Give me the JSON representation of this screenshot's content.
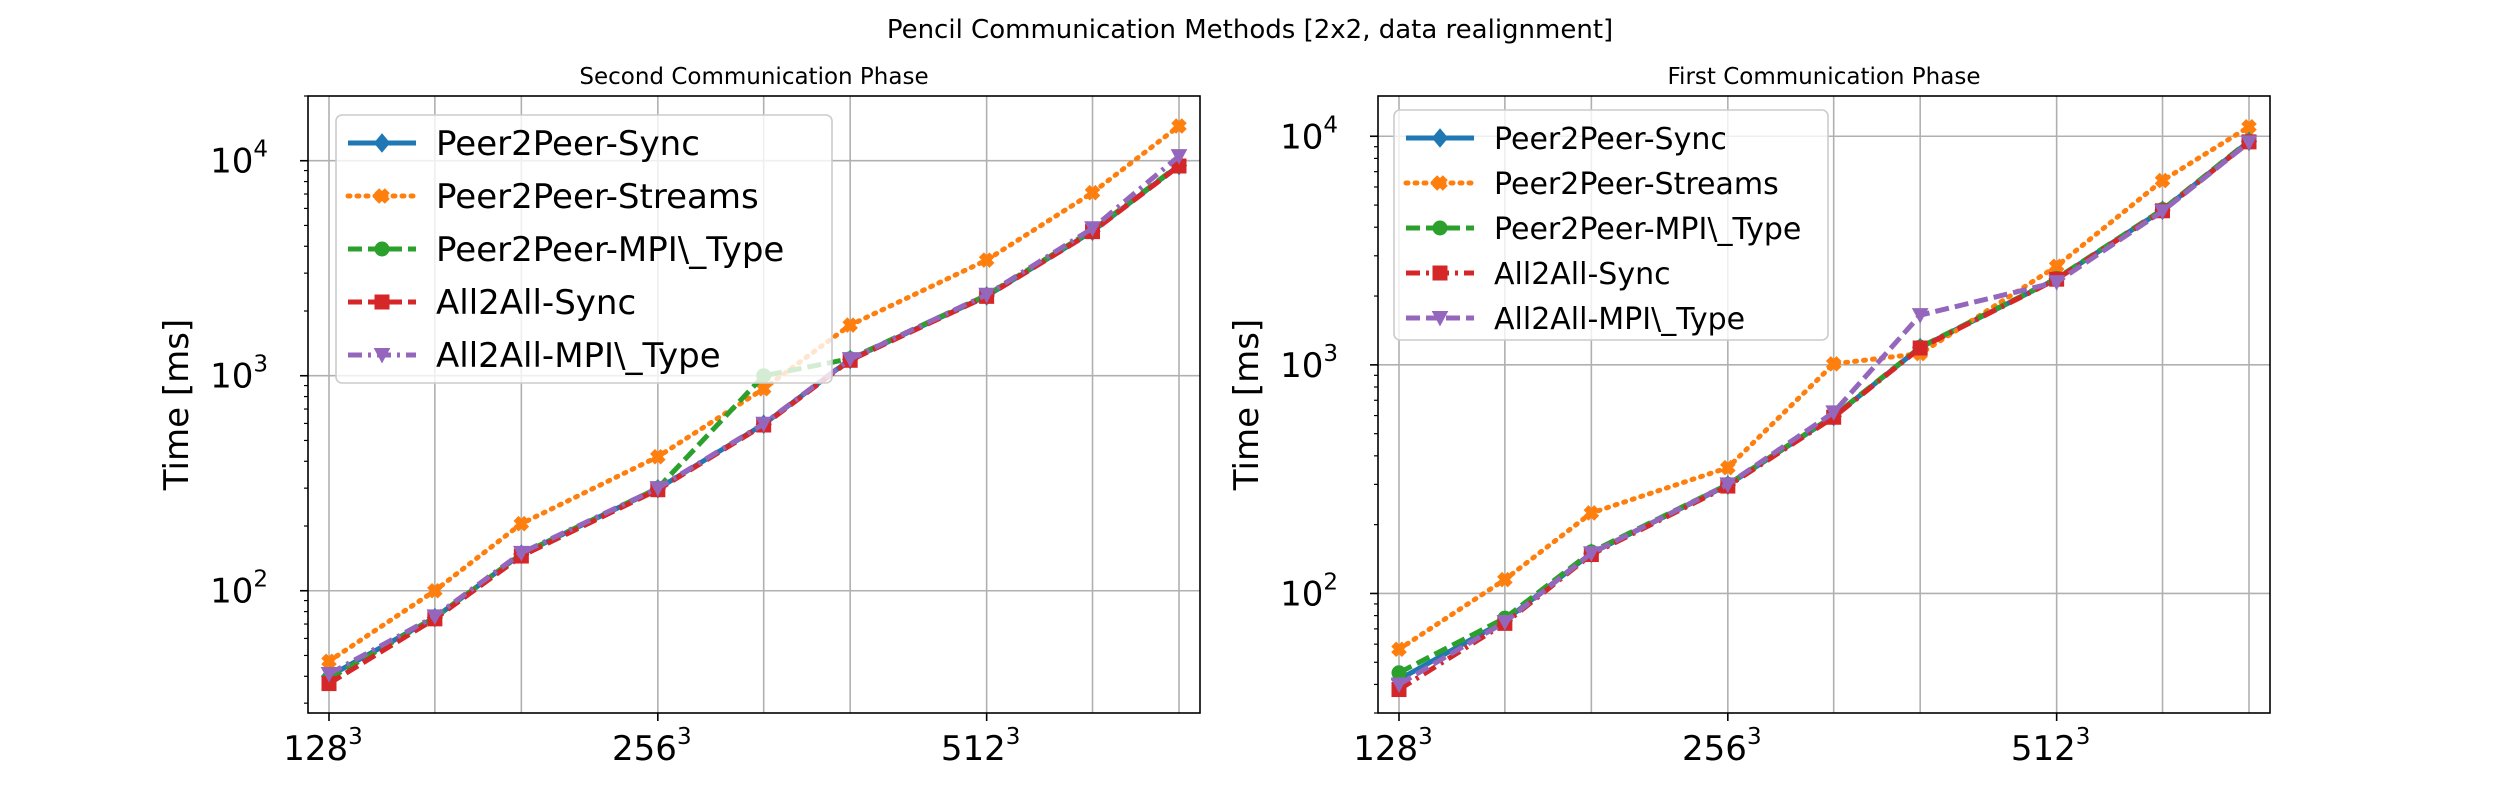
{
  "figure": {
    "suptitle": "Pencil Communication Methods [2x2, data realignment]"
  },
  "colors": {
    "Peer2Peer-Sync": "#1f77b4",
    "Peer2Peer-Streams": "#ff7f0e",
    "Peer2Peer-MPI\\_Type": "#2ca02c",
    "All2All-Sync": "#d62728",
    "All2All-MPI\\_Type": "#9467bd"
  },
  "chart_data": [
    {
      "type": "line",
      "title": "Second Communication Phase",
      "xlabel": "",
      "ylabel": "Time [ms]",
      "yscale": "log",
      "ylim": [
        27,
        20000
      ],
      "x": [
        128,
        160,
        192,
        256,
        320,
        384,
        512,
        640,
        768
      ],
      "xticks": [
        {
          "x": 128,
          "base": "128",
          "exp": "3"
        },
        {
          "x": 256,
          "base": "256",
          "exp": "3"
        },
        {
          "x": 512,
          "base": "512",
          "exp": "3"
        }
      ],
      "yticks": [
        {
          "y": 100,
          "base": "10",
          "exp": "2"
        },
        {
          "y": 1000,
          "base": "10",
          "exp": "3"
        },
        {
          "y": 10000,
          "base": "10",
          "exp": "4"
        }
      ],
      "grid": true,
      "legend": "upper left",
      "series": [
        {
          "name": "Peer2Peer-Sync",
          "style": "solid",
          "marker": "diamond",
          "values": [
            40,
            75,
            148,
            298,
            595,
            1190,
            2350,
            4700,
            9500
          ]
        },
        {
          "name": "Peer2Peer-Streams",
          "style": "dotted",
          "marker": "plus",
          "values": [
            47,
            100,
            205,
            420,
            870,
            1720,
            3450,
            7100,
            14500
          ]
        },
        {
          "name": "Peer2Peer-MPI\\_Type",
          "style": "dashed",
          "marker": "circle",
          "values": [
            39,
            75,
            148,
            300,
            1000,
            1200,
            2370,
            4750,
            9550
          ]
        },
        {
          "name": "All2All-Sync",
          "style": "dashed",
          "marker": "square",
          "values": [
            37,
            74,
            145,
            295,
            590,
            1180,
            2340,
            4680,
            9450
          ]
        },
        {
          "name": "All2All-MPI\\_Type",
          "style": "dashdot",
          "marker": "triangle-down",
          "values": [
            41,
            76,
            150,
            300,
            598,
            1195,
            2380,
            4850,
            10500
          ]
        }
      ]
    },
    {
      "type": "line",
      "title": "First Communication Phase",
      "xlabel": "",
      "ylabel": "Time [ms]",
      "yscale": "log",
      "ylim": [
        30,
        15000
      ],
      "x": [
        128,
        160,
        192,
        256,
        320,
        384,
        512,
        640,
        768
      ],
      "xticks": [
        {
          "x": 128,
          "base": "128",
          "exp": "3"
        },
        {
          "x": 256,
          "base": "256",
          "exp": "3"
        },
        {
          "x": 512,
          "base": "512",
          "exp": "3"
        }
      ],
      "yticks": [
        {
          "y": 100,
          "base": "10",
          "exp": "2"
        },
        {
          "y": 1000,
          "base": "10",
          "exp": "3"
        },
        {
          "y": 10000,
          "base": "10",
          "exp": "4"
        }
      ],
      "grid": true,
      "legend": "upper left",
      "series": [
        {
          "name": "Peer2Peer-Sync",
          "style": "solid",
          "marker": "diamond",
          "values": [
            42,
            76,
            150,
            298,
            595,
            1190,
            2380,
            4750,
            9500
          ]
        },
        {
          "name": "Peer2Peer-Streams",
          "style": "dotted",
          "marker": "plus",
          "values": [
            57,
            115,
            225,
            355,
            1010,
            1120,
            2700,
            6400,
            11000
          ]
        },
        {
          "name": "Peer2Peer-MPI\\_Type",
          "style": "dashed",
          "marker": "circle",
          "values": [
            45,
            78,
            152,
            300,
            598,
            1195,
            2390,
            4780,
            9550
          ]
        },
        {
          "name": "All2All-Sync",
          "style": "dashdot",
          "marker": "square",
          "values": [
            38,
            74,
            148,
            295,
            590,
            1185,
            2370,
            4720,
            9450
          ]
        },
        {
          "name": "All2All-MPI\\_Type",
          "style": "dashed",
          "marker": "triangle-down",
          "values": [
            40,
            75,
            150,
            300,
            620,
            1650,
            2300,
            4700,
            9400
          ]
        }
      ]
    }
  ]
}
